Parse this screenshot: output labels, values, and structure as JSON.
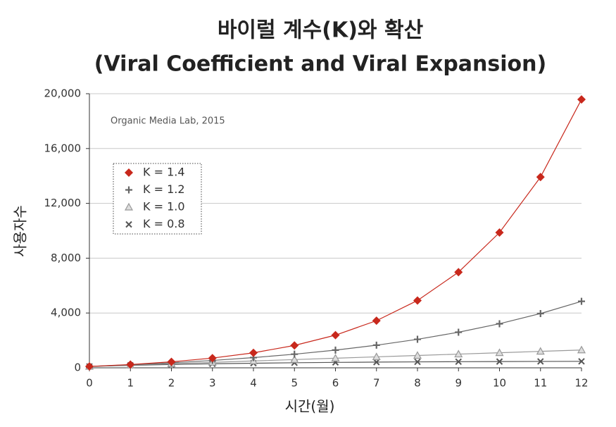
{
  "chart_data": {
    "type": "line",
    "title": "바이럴 계수(K)와 확산",
    "subtitle": "(Viral Coefficient and Viral Expansion)",
    "annotation": "Organic Media Lab, 2015",
    "xlabel": "시간(월)",
    "ylabel": "사용자수",
    "x": [
      0,
      1,
      2,
      3,
      4,
      5,
      6,
      7,
      8,
      9,
      10,
      11,
      12
    ],
    "xlim": [
      0,
      12
    ],
    "xticks": [
      0,
      1,
      2,
      3,
      4,
      5,
      6,
      7,
      8,
      9,
      10,
      11,
      12
    ],
    "ylim": [
      0,
      20000
    ],
    "yticks": [
      0,
      {
        "value": 4000,
        "label": "4,000"
      },
      {
        "value": 8000,
        "label": "8,000"
      },
      {
        "value": 12000,
        "label": "12,000"
      },
      {
        "value": 16000,
        "label": "16,000"
      },
      {
        "value": 20000,
        "label": "20,000"
      }
    ],
    "grid": true,
    "legend": "upper left",
    "series": [
      {
        "name": "K = 1.4",
        "color": "#c8281c",
        "marker": "diamond",
        "values": [
          100,
          240,
          436,
          710,
          1094,
          1632,
          2384,
          3438,
          4913,
          6978,
          9870,
          13918,
          19585
        ]
      },
      {
        "name": "K = 1.2",
        "color": "#666666",
        "marker": "plus",
        "values": [
          100,
          220,
          364,
          537,
          744,
          993,
          1292,
          1650,
          2080,
          2596,
          3215,
          3959,
          4851
        ]
      },
      {
        "name": "K = 1.0",
        "color": "#999999",
        "marker": "triangle",
        "values": [
          100,
          200,
          300,
          400,
          500,
          600,
          700,
          800,
          900,
          1000,
          1100,
          1200,
          1300
        ]
      },
      {
        "name": "K = 0.8",
        "color": "#555555",
        "marker": "x",
        "values": [
          100,
          180,
          244,
          295,
          336,
          369,
          395,
          416,
          433,
          446,
          457,
          466,
          473
        ]
      }
    ]
  }
}
